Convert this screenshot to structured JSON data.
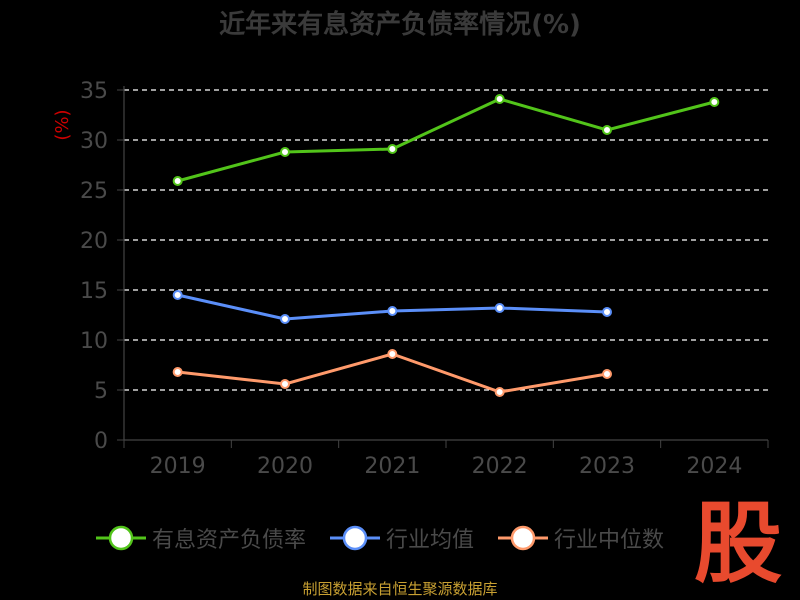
{
  "chart_data": {
    "type": "line",
    "title": "近年来有息资产负债率情况(%)",
    "ylabel": "(%)",
    "xlabel": "",
    "categories": [
      "2019",
      "2020",
      "2021",
      "2022",
      "2023",
      "2024"
    ],
    "ylim": [
      0,
      35
    ],
    "yticks": [
      0,
      5,
      10,
      15,
      20,
      25,
      30,
      35
    ],
    "grid": true,
    "legend_position": "bottom",
    "series": [
      {
        "name": "有息资产负债率",
        "color": "#52c41a",
        "values": [
          25.9,
          28.8,
          29.1,
          34.1,
          31.0,
          33.8
        ]
      },
      {
        "name": "行业均值",
        "color": "#5b8ff9",
        "values": [
          14.5,
          12.1,
          12.9,
          13.2,
          12.8,
          null
        ]
      },
      {
        "name": "行业中位数",
        "color": "#ff9a6b",
        "values": [
          6.8,
          5.6,
          8.6,
          4.8,
          6.6,
          null
        ]
      }
    ]
  },
  "footer": {
    "source": "制图数据来自恒生聚源数据库"
  },
  "watermark": {
    "text": "股"
  }
}
